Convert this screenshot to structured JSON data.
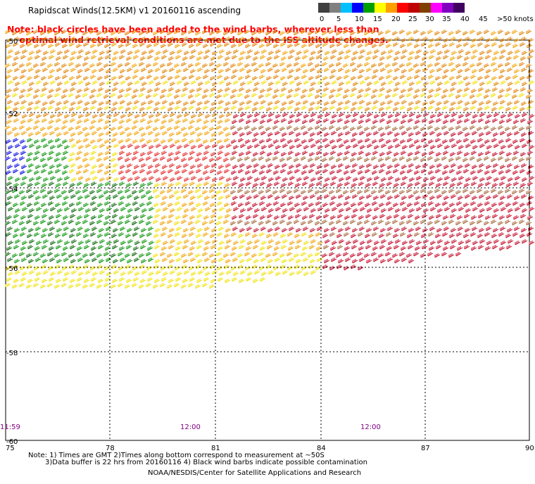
{
  "title": "Rapidscat Winds(12.5KM) v1 20160116 ascending",
  "note_line1": "Note: black circles have been added to the wind barbs, wherever less than",
  "note_line2": "optimal wind retrieval conditions are met due to the ISS altitude changes.",
  "legend": {
    "labels": [
      "0",
      "5",
      "10",
      "15",
      "20",
      "25",
      "30",
      "35",
      "40",
      "45",
      ">50 knots"
    ],
    "colors": [
      "#404040",
      "#808080",
      "#00c0ff",
      "#0000ff",
      "#00a000",
      "#ffff00",
      "#ffa000",
      "#ff0000",
      "#c00000",
      "#804000",
      "#ff00ff",
      "#8000c0",
      "#400060"
    ]
  },
  "axes": {
    "lon_labels": [
      "75",
      "78",
      "81",
      "84",
      "87",
      "90"
    ],
    "lat_labels": [
      "-50",
      "-52",
      "-54",
      "-56",
      "-58",
      "-60"
    ]
  },
  "times": [
    "11:59",
    "12:00",
    "12:00"
  ],
  "footer": {
    "line1": "Note: 1) Times are GMT 2)Times along bottom correspond to measurement at ~50S",
    "line2": "3)Data buffer is 22 hrs from 20160116 4) Black wind barbs indicate possible contamination",
    "line3": "NOAA/NESDIS/Center for Satellite Applications and Research"
  }
}
